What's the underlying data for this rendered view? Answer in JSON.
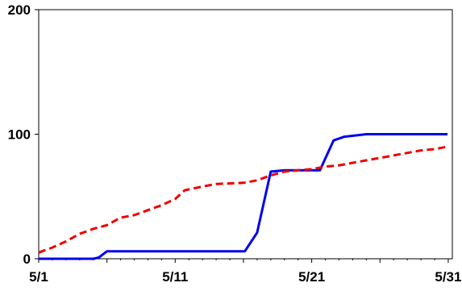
{
  "chart_data": {
    "type": "line",
    "title": "",
    "xlabel": "",
    "ylabel": "",
    "x_ticks": [
      "5/1",
      "5/11",
      "5/21",
      "5/31"
    ],
    "x_tick_days": [
      1,
      11,
      21,
      31
    ],
    "y_ticks": [
      "0",
      "100",
      "200"
    ],
    "y_tick_values": [
      0,
      100,
      200
    ],
    "xlim": [
      1,
      31.3
    ],
    "ylim": [
      0,
      200
    ],
    "grid": false,
    "legend": "none",
    "series": [
      {
        "color": "#0000ee",
        "style": "solid",
        "points": [
          [
            1,
            0
          ],
          [
            5,
            0
          ],
          [
            5.4,
            1
          ],
          [
            6,
            6
          ],
          [
            7,
            6
          ],
          [
            8,
            6
          ],
          [
            9,
            6
          ],
          [
            10,
            6
          ],
          [
            11,
            6
          ],
          [
            12,
            6
          ],
          [
            13,
            6
          ],
          [
            14,
            6
          ],
          [
            15,
            6
          ],
          [
            16,
            6
          ],
          [
            16.1,
            6
          ],
          [
            17,
            21
          ],
          [
            18,
            70
          ],
          [
            19,
            71
          ],
          [
            20,
            71
          ],
          [
            21,
            71
          ],
          [
            21.6,
            71
          ],
          [
            22.6,
            95
          ],
          [
            23.4,
            98
          ],
          [
            25,
            100
          ],
          [
            31.5,
            100
          ]
        ]
      },
      {
        "color": "#ee0000",
        "style": "dashed",
        "points": [
          [
            1,
            5
          ],
          [
            2,
            9
          ],
          [
            3,
            14
          ],
          [
            4,
            20
          ],
          [
            5,
            24
          ],
          [
            6,
            27
          ],
          [
            7,
            33
          ],
          [
            8,
            35
          ],
          [
            9,
            39
          ],
          [
            10,
            43
          ],
          [
            11,
            48
          ],
          [
            11.7,
            55
          ],
          [
            13,
            58
          ],
          [
            14,
            60
          ],
          [
            16,
            61
          ],
          [
            17,
            63
          ],
          [
            18,
            67
          ],
          [
            19,
            70
          ],
          [
            20,
            71
          ],
          [
            21,
            72
          ],
          [
            22,
            74
          ],
          [
            23,
            75
          ],
          [
            24,
            77
          ],
          [
            25,
            79
          ],
          [
            26,
            81
          ],
          [
            27,
            83
          ],
          [
            28,
            85
          ],
          [
            29,
            87
          ],
          [
            30,
            88
          ],
          [
            31.5,
            90
          ]
        ]
      }
    ]
  }
}
